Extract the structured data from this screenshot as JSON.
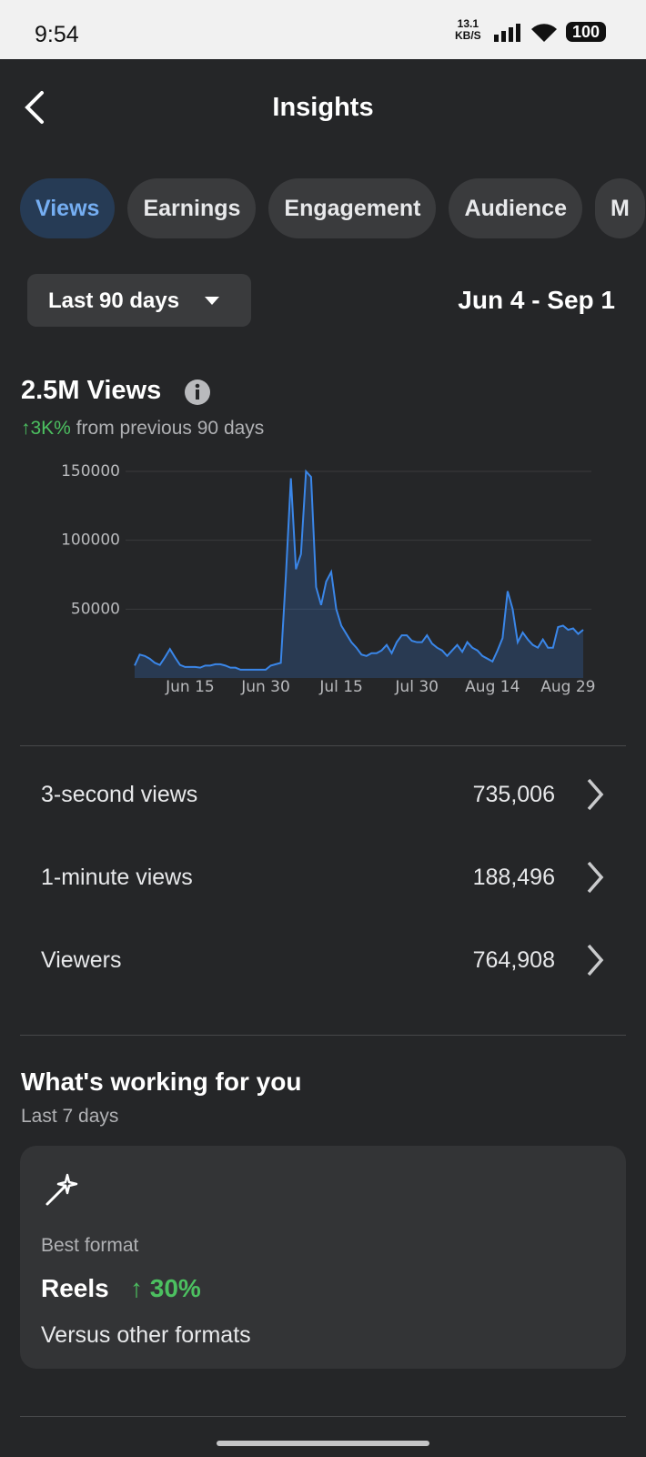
{
  "status_bar": {
    "time": "9:54",
    "speed": "13.1",
    "speed_unit": "KB/S",
    "battery": "100"
  },
  "header": {
    "title": "Insights"
  },
  "tabs": [
    "Views",
    "Earnings",
    "Engagement",
    "Audience",
    "M"
  ],
  "filter": {
    "range": "Last 90 days",
    "dates": "Jun 4 - Sep 1"
  },
  "summary": {
    "total": "2.5M Views",
    "change": "↑3K%",
    "change_note": "from previous 90 days"
  },
  "chart_data": {
    "type": "area",
    "color": "#3a86e8",
    "categories": [
      null,
      null,
      null,
      null,
      null,
      null,
      null,
      null,
      null,
      null,
      null,
      "Jun 15",
      null,
      null,
      null,
      null,
      null,
      null,
      null,
      null,
      null,
      null,
      null,
      null,
      null,
      null,
      "Jun 30",
      null,
      null,
      null,
      null,
      null,
      null,
      null,
      null,
      null,
      null,
      null,
      null,
      null,
      null,
      "Jul 15",
      null,
      null,
      null,
      null,
      null,
      null,
      null,
      null,
      null,
      null,
      null,
      null,
      null,
      null,
      "Jul 30",
      null,
      null,
      null,
      null,
      null,
      null,
      null,
      null,
      null,
      null,
      null,
      null,
      null,
      null,
      "Aug 14",
      null,
      null,
      null,
      null,
      null,
      null,
      null,
      null,
      null,
      null,
      null,
      null,
      null,
      null,
      "Aug 29",
      null,
      null,
      null
    ],
    "values": [
      9000,
      17000,
      16000,
      14000,
      11000,
      9500,
      15000,
      21000,
      15000,
      9500,
      8000,
      8000,
      8000,
      7500,
      9000,
      9000,
      10000,
      10000,
      9000,
      7500,
      7500,
      6000,
      6000,
      6000,
      6000,
      6000,
      6000,
      9000,
      10000,
      11000,
      74000,
      145000,
      79000,
      90000,
      150000,
      146000,
      66000,
      53000,
      70000,
      77000,
      50000,
      38000,
      32000,
      26000,
      22000,
      17000,
      16000,
      18000,
      18000,
      20000,
      24000,
      18000,
      26000,
      31000,
      31000,
      27000,
      26000,
      26000,
      31000,
      25000,
      22000,
      20000,
      16000,
      20000,
      24000,
      19000,
      26000,
      22000,
      20000,
      16000,
      14000,
      12000,
      20000,
      29000,
      63000,
      50000,
      26000,
      33000,
      28000,
      24000,
      22000,
      28000,
      22000,
      22000,
      37000,
      38000,
      35000,
      36000,
      32000,
      35000
    ],
    "ylim": [
      0,
      150000
    ],
    "yticks": [
      50000,
      100000,
      150000
    ],
    "grid": true
  },
  "metrics": [
    {
      "label": "3-second views",
      "value": "735,006"
    },
    {
      "label": "1-minute views",
      "value": "188,496"
    },
    {
      "label": "Viewers",
      "value": "764,908"
    }
  ],
  "working": {
    "title": "What's working for you",
    "subtitle": "Last 7 days",
    "card": {
      "label": "Best format",
      "name": "Reels",
      "change": "↑ 30%",
      "note": "Versus other formats"
    }
  }
}
